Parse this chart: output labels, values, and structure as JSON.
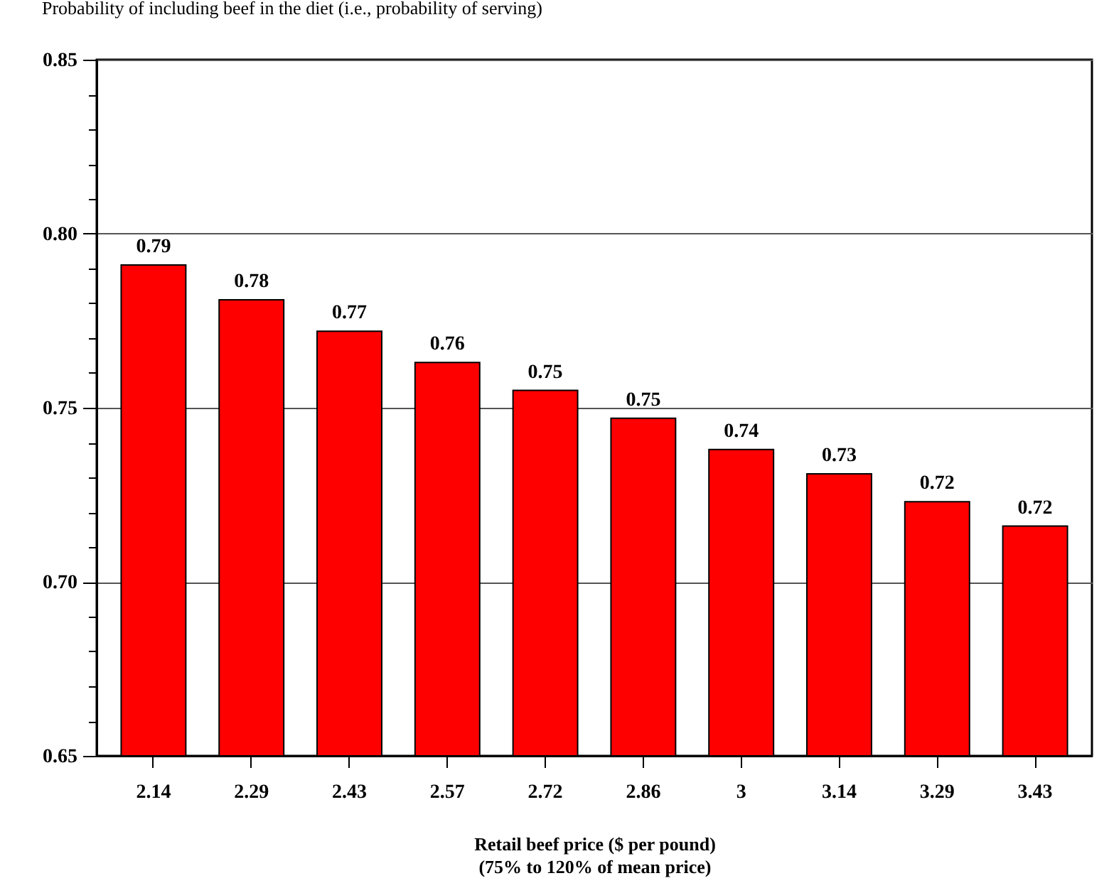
{
  "chart_data": {
    "type": "bar",
    "title": "Probability of including beef in the diet (i.e., probability of serving)",
    "xlabel": "Retail beef price ($ per pound)\n(75% to 120% of mean price)",
    "categories": [
      "2.14",
      "2.29",
      "2.43",
      "2.57",
      "2.72",
      "2.86",
      "3",
      "3.14",
      "3.29",
      "3.43"
    ],
    "values": [
      0.791,
      0.781,
      0.772,
      0.763,
      0.755,
      0.747,
      0.738,
      0.731,
      0.723,
      0.716
    ],
    "value_labels": [
      "0.79",
      "0.78",
      "0.77",
      "0.76",
      "0.75",
      "0.75",
      "0.74",
      "0.73",
      "0.72",
      "0.72"
    ],
    "color": "#ff0000",
    "ylim": [
      0.65,
      0.85
    ],
    "yticks": [
      0.65,
      {
        "value": 0.66,
        "label": null
      },
      {
        "value": 0.67,
        "label": null
      },
      {
        "value": 0.68,
        "label": null
      },
      {
        "value": 0.69,
        "label": null
      },
      {
        "value": 0.7,
        "label": "0.70"
      },
      {
        "value": 0.71,
        "label": null
      },
      {
        "value": 0.72,
        "label": null
      },
      {
        "value": 0.73,
        "label": null
      },
      {
        "value": 0.74,
        "label": null
      },
      0.75,
      {
        "value": 0.76,
        "label": null
      },
      {
        "value": 0.77,
        "label": null
      },
      {
        "value": 0.78,
        "label": null
      },
      {
        "value": 0.79,
        "label": null
      },
      {
        "value": 0.8,
        "label": "0.80"
      },
      {
        "value": 0.81,
        "label": null
      },
      {
        "value": 0.82,
        "label": null
      },
      {
        "value": 0.83,
        "label": null
      },
      {
        "value": 0.84,
        "label": null
      },
      0.85
    ],
    "grid": "y"
  }
}
